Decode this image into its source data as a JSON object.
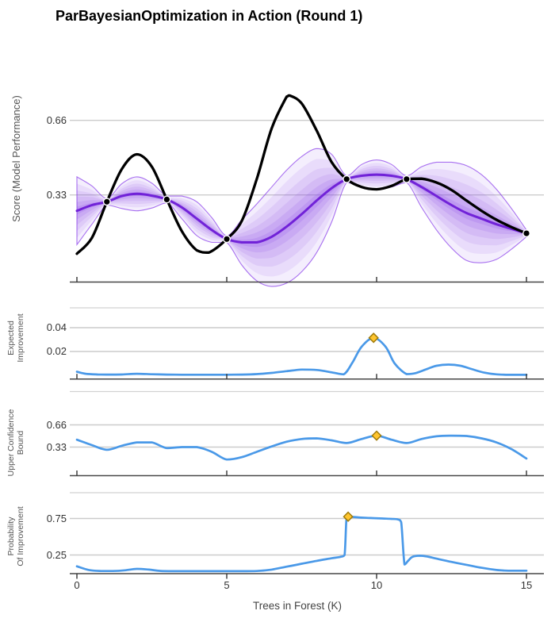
{
  "title": "ParBayesianOptimization in Action (Round 1)",
  "x_axis": {
    "label": "Trees in Forest (K)",
    "tick_values": [
      0,
      5,
      10,
      15
    ],
    "tick_labels": [
      "0",
      "5",
      "10",
      "15"
    ],
    "range": [
      0,
      15
    ]
  },
  "colors": {
    "true_function": "#000000",
    "gp_mean": "#7122d8",
    "gp_band_fill": "#8a46e8",
    "gp_band_edge": "#8637ea",
    "acquisition_line": "#4a99e8",
    "best_point_fill": "#ffc52f",
    "best_point_stroke": "#a17c0a",
    "observation_fill": "#000000",
    "observation_ring": "#ffffff",
    "gridline": "#cccccc",
    "separator": "#d2d2d2",
    "axis_line": "#474747",
    "tick_mark": "#333333"
  },
  "panels": [
    {
      "id": "score",
      "ylabel_lines": [
        "Score (Model Performance)"
      ],
      "ytick_labels": [
        "0.66",
        "0.33"
      ]
    },
    {
      "id": "ei",
      "ylabel_lines": [
        "Expected",
        "Improvement"
      ],
      "ytick_labels": [
        "0.04",
        "0.02"
      ]
    },
    {
      "id": "ucb",
      "ylabel_lines": [
        "Upper Confidence",
        "Bound"
      ],
      "ytick_labels": [
        "0.66",
        "0.33"
      ]
    },
    {
      "id": "pi",
      "ylabel_lines": [
        "Probability",
        "Of Improvement"
      ],
      "ytick_labels": [
        "0.75",
        "0.25"
      ]
    }
  ],
  "chart_data": [
    {
      "type": "line",
      "panel": "score",
      "ylabel": "Score (Model Performance)",
      "ytick_values": [
        0.66,
        0.33
      ],
      "ylim": [
        -0.06,
        0.85
      ],
      "grid": true,
      "band": {
        "name": "gp-uncertainty-band",
        "x": [
          0,
          0.5,
          1,
          1.5,
          2,
          2.5,
          3,
          3.5,
          4,
          4.5,
          5,
          5.5,
          6,
          6.5,
          7,
          7.5,
          8,
          8.5,
          9,
          9.5,
          10,
          10.5,
          11,
          11.5,
          12,
          12.5,
          13,
          13.5,
          14,
          14.5,
          15
        ],
        "mean": [
          0.26,
          0.285,
          0.3,
          0.325,
          0.335,
          0.327,
          0.31,
          0.275,
          0.225,
          0.175,
          0.135,
          0.12,
          0.12,
          0.145,
          0.19,
          0.245,
          0.305,
          0.36,
          0.4,
          0.415,
          0.42,
          0.415,
          0.4,
          0.365,
          0.325,
          0.285,
          0.25,
          0.225,
          0.2,
          0.18,
          0.16
        ],
        "half_width": [
          0.15,
          0.085,
          0.015,
          0.055,
          0.075,
          0.055,
          0.015,
          0.05,
          0.075,
          0.055,
          0.015,
          0.1,
          0.17,
          0.22,
          0.25,
          0.255,
          0.23,
          0.15,
          0.015,
          0.05,
          0.065,
          0.05,
          0.015,
          0.09,
          0.15,
          0.19,
          0.21,
          0.195,
          0.155,
          0.09,
          0.015
        ]
      },
      "series": [
        {
          "name": "true-function",
          "x": [
            0,
            0.5,
            1,
            1.5,
            2,
            2.5,
            3,
            3.5,
            4,
            4.4,
            5,
            5.5,
            6,
            6.5,
            7,
            7.1,
            7.5,
            8,
            8.5,
            9,
            9.5,
            10,
            10.5,
            11,
            11.5,
            12,
            12.5,
            13,
            13.5,
            14,
            14.5,
            15
          ],
          "y": [
            0.07,
            0.14,
            0.3,
            0.445,
            0.51,
            0.455,
            0.31,
            0.17,
            0.085,
            0.075,
            0.135,
            0.215,
            0.4,
            0.625,
            0.765,
            0.77,
            0.735,
            0.615,
            0.475,
            0.4,
            0.365,
            0.355,
            0.37,
            0.4,
            0.402,
            0.385,
            0.352,
            0.305,
            0.26,
            0.22,
            0.188,
            0.16
          ]
        }
      ],
      "observations": {
        "name": "sampled-points",
        "x": [
          1,
          3,
          5,
          9,
          11,
          15
        ],
        "y": [
          0.3,
          0.31,
          0.135,
          0.4,
          0.4,
          0.16
        ]
      }
    },
    {
      "type": "line",
      "panel": "ei",
      "ylabel": "Expected Improvement",
      "ytick_values": [
        0.04,
        0.02
      ],
      "ylim": [
        0,
        0.055
      ],
      "grid": true,
      "series": [
        {
          "name": "expected-improvement",
          "x": [
            0,
            0.3,
            0.7,
            1,
            1.5,
            2,
            2.5,
            3,
            3.5,
            4,
            4.5,
            5,
            5.5,
            6,
            6.5,
            7,
            7.5,
            8,
            8.5,
            8.9,
            9.2,
            9.5,
            9.9,
            10.3,
            10.6,
            11,
            11.3,
            11.7,
            12,
            12.4,
            12.8,
            13.2,
            13.6,
            14,
            14.5,
            15
          ],
          "y": [
            0.003,
            0.0013,
            0.0007,
            0.0006,
            0.0007,
            0.0013,
            0.0009,
            0.0006,
            0.0005,
            0.0005,
            0.0005,
            0.0005,
            0.0006,
            0.001,
            0.002,
            0.0035,
            0.0048,
            0.0045,
            0.0025,
            0.0008,
            0.011,
            0.024,
            0.0315,
            0.024,
            0.01,
            0.001,
            0.0018,
            0.0055,
            0.008,
            0.009,
            0.008,
            0.005,
            0.0022,
            0.0008,
            0.0004,
            0.0004
          ]
        }
      ],
      "best_point": {
        "x": 9.9,
        "y": 0.0315
      }
    },
    {
      "type": "line",
      "panel": "ucb",
      "ylabel": "Upper Confidence Bound",
      "ytick_values": [
        0.66,
        0.33
      ],
      "ylim": [
        0,
        0.9
      ],
      "grid": true,
      "series": [
        {
          "name": "upper-confidence-bound",
          "x": [
            0,
            0.5,
            1,
            1.5,
            2,
            2.5,
            3,
            3.5,
            4,
            4.5,
            5,
            5.5,
            6,
            6.5,
            7,
            7.5,
            8,
            8.5,
            9,
            9.5,
            10,
            10.5,
            11,
            11.5,
            12,
            12.5,
            13,
            13.5,
            14,
            14.5,
            15
          ],
          "y": [
            0.44,
            0.36,
            0.29,
            0.35,
            0.4,
            0.4,
            0.315,
            0.33,
            0.33,
            0.26,
            0.145,
            0.18,
            0.26,
            0.34,
            0.41,
            0.45,
            0.46,
            0.43,
            0.39,
            0.45,
            0.5,
            0.44,
            0.39,
            0.45,
            0.49,
            0.5,
            0.495,
            0.46,
            0.4,
            0.3,
            0.16
          ]
        }
      ],
      "best_point": {
        "x": 10,
        "y": 0.5
      }
    },
    {
      "type": "line",
      "panel": "pi",
      "ylabel": "Probability Of Improvement",
      "ytick_values": [
        0.75,
        0.25
      ],
      "ylim": [
        0,
        1.0
      ],
      "grid": true,
      "series": [
        {
          "name": "probability-of-improvement",
          "x": [
            0,
            0.4,
            0.8,
            1.2,
            1.6,
            2,
            2.4,
            2.8,
            3.5,
            4.5,
            5.5,
            6,
            6.5,
            7,
            7.5,
            8,
            8.5,
            8.8,
            8.93,
            9.0,
            9.1,
            9.4,
            9.8,
            10.2,
            10.5,
            10.7,
            10.82,
            10.93,
            11.05,
            11.2,
            11.45,
            11.7,
            12,
            12.5,
            13,
            13.5,
            14,
            14.4,
            15
          ],
          "y": [
            0.095,
            0.045,
            0.03,
            0.03,
            0.04,
            0.06,
            0.05,
            0.032,
            0.028,
            0.028,
            0.028,
            0.03,
            0.05,
            0.09,
            0.13,
            0.17,
            0.205,
            0.225,
            0.25,
            0.77,
            0.775,
            0.765,
            0.757,
            0.75,
            0.745,
            0.738,
            0.7,
            0.12,
            0.17,
            0.225,
            0.24,
            0.228,
            0.2,
            0.155,
            0.115,
            0.075,
            0.045,
            0.035,
            0.035
          ]
        }
      ],
      "best_point": {
        "x": 9.05,
        "y": 0.775
      }
    }
  ]
}
